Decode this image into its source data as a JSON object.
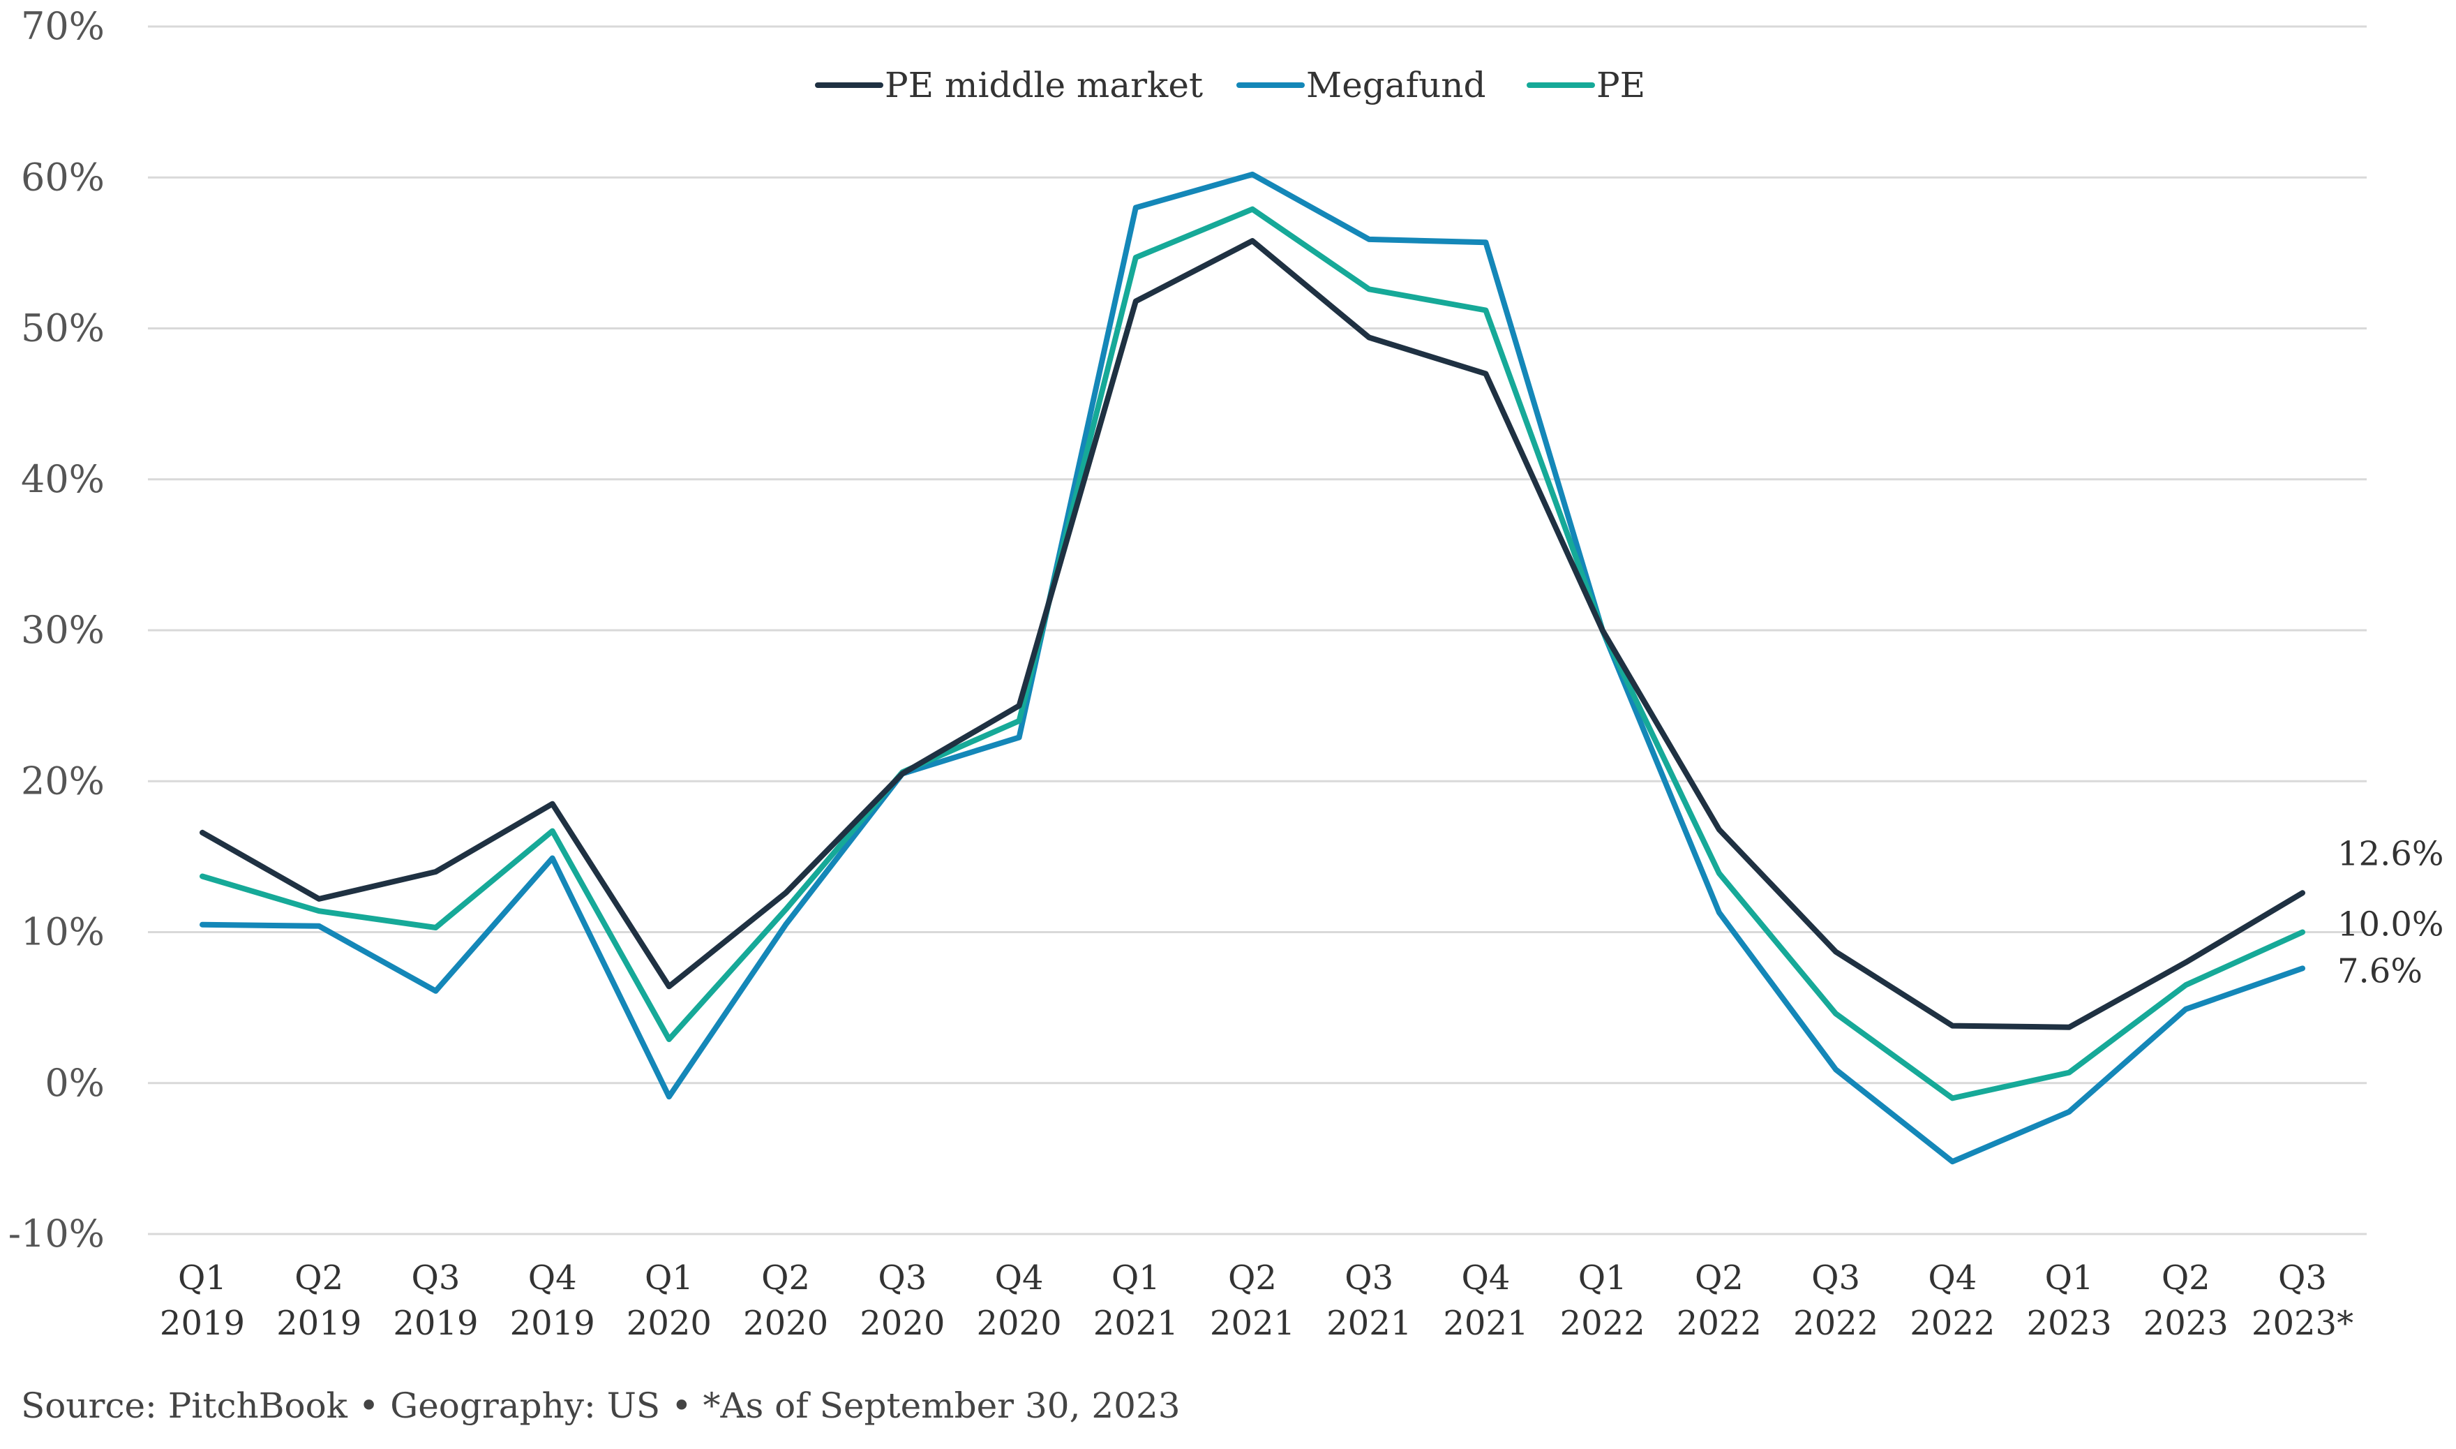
{
  "chart_data": {
    "type": "line",
    "ylim": [
      -10,
      70
    ],
    "yticks": [
      -10,
      0,
      10,
      20,
      30,
      40,
      50,
      60,
      70
    ],
    "ytick_labels": [
      "-10%",
      "0%",
      "10%",
      "20%",
      "30%",
      "40%",
      "50%",
      "60%",
      "70%"
    ],
    "grid": true,
    "legend_position": "top-center",
    "categories": [
      {
        "q": "Q1",
        "y": "2019"
      },
      {
        "q": "Q2",
        "y": "2019"
      },
      {
        "q": "Q3",
        "y": "2019"
      },
      {
        "q": "Q4",
        "y": "2019"
      },
      {
        "q": "Q1",
        "y": "2020"
      },
      {
        "q": "Q2",
        "y": "2020"
      },
      {
        "q": "Q3",
        "y": "2020"
      },
      {
        "q": "Q4",
        "y": "2020"
      },
      {
        "q": "Q1",
        "y": "2021"
      },
      {
        "q": "Q2",
        "y": "2021"
      },
      {
        "q": "Q3",
        "y": "2021"
      },
      {
        "q": "Q4",
        "y": "2021"
      },
      {
        "q": "Q1",
        "y": "2022"
      },
      {
        "q": "Q2",
        "y": "2022"
      },
      {
        "q": "Q3",
        "y": "2022"
      },
      {
        "q": "Q4",
        "y": "2022"
      },
      {
        "q": "Q1",
        "y": "2023"
      },
      {
        "q": "Q2",
        "y": "2023"
      },
      {
        "q": "Q3",
        "y": "2023*"
      }
    ],
    "series": [
      {
        "name": "PE middle market",
        "color": "#1f3142",
        "values": [
          16.6,
          12.2,
          14.0,
          18.5,
          6.4,
          12.6,
          20.5,
          25.0,
          51.8,
          55.8,
          49.4,
          47.0,
          30.0,
          16.8,
          8.7,
          3.8,
          3.7,
          8.0,
          12.6
        ],
        "end_label": "12.6%"
      },
      {
        "name": "Megafund",
        "color": "#1487b8",
        "values": [
          10.5,
          10.4,
          6.1,
          14.9,
          -0.9,
          10.5,
          20.5,
          22.9,
          58.0,
          60.2,
          55.9,
          55.7,
          30.0,
          11.3,
          0.9,
          -5.2,
          -1.9,
          4.9,
          7.6
        ],
        "end_label": "7.6%"
      },
      {
        "name": "PE",
        "color": "#16a998",
        "values": [
          13.7,
          11.4,
          10.3,
          16.7,
          2.9,
          11.5,
          20.6,
          24.0,
          54.7,
          57.9,
          52.6,
          51.2,
          30.0,
          13.9,
          4.6,
          -1.0,
          0.7,
          6.5,
          10.0
        ],
        "end_label": "10.0%"
      }
    ]
  },
  "source_text": "Source: PitchBook • Geography: US • *As of September 30, 2023"
}
